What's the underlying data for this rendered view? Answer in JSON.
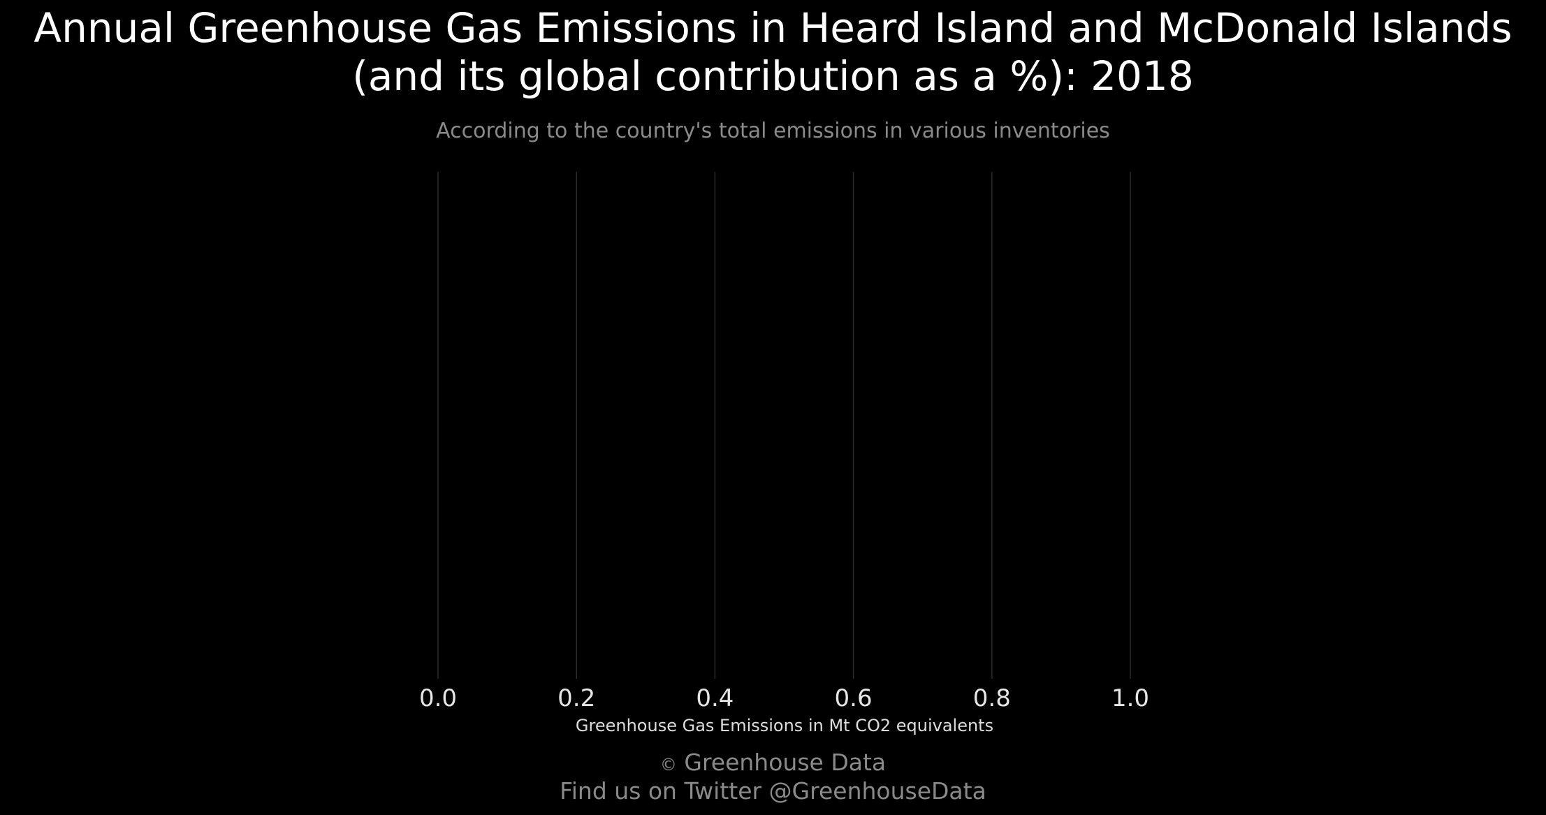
{
  "chart_data": {
    "type": "bar",
    "title_lines": [
      "Annual Greenhouse Gas Emissions in Heard Island and McDonald Islands",
      "(and its global contribution as a %): 2018"
    ],
    "subtitle": "According to the country's total emissions in various inventories",
    "xlabel": "Greenhouse Gas Emissions in Mt CO2 equivalents",
    "ylabel": "",
    "categories": [],
    "values": [],
    "xlim": [
      0.0,
      1.0
    ],
    "xticks": [
      "0.0",
      "0.2",
      "0.4",
      "0.6",
      "0.8",
      "1.0"
    ],
    "grid": true,
    "legend": "none",
    "orientation": "horizontal"
  },
  "footer": {
    "copyright_symbol": "©",
    "line1": "Greenhouse Data",
    "line2": "Find us on Twitter @GreenhouseData"
  },
  "colors": {
    "background": "#000000",
    "title": "#ffffff",
    "subtitle": "#8a8a8a",
    "gridline": "#2a2a2a",
    "tick_label": "#e6e6e6",
    "footer": "#8a8a8a"
  }
}
